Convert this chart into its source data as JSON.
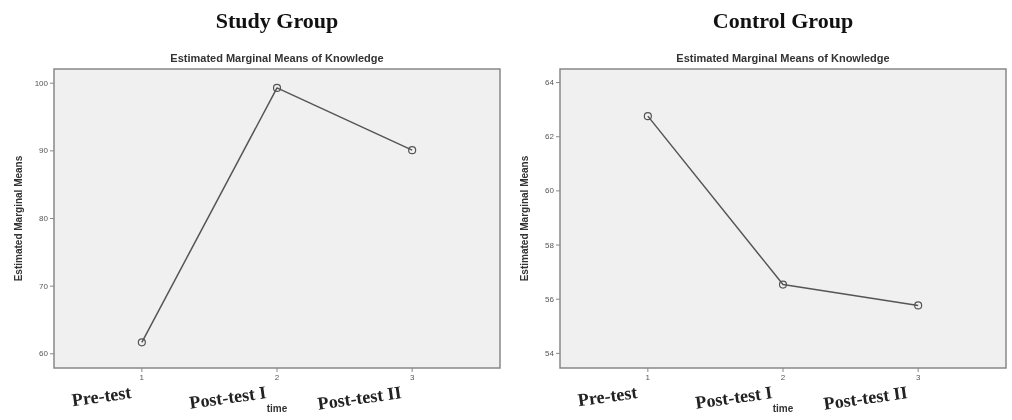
{
  "chart_data": [
    {
      "type": "line",
      "title": "Study Group",
      "subtitle": "Estimated Marginal Means of Knowledge",
      "xlabel": "time",
      "ylabel": "Estimated Marginal Means",
      "categories": [
        "1",
        "2",
        "3"
      ],
      "series": [
        {
          "color": "#555555",
          "values": [
            61.7,
            99.3,
            90.1
          ]
        }
      ],
      "ylim": [
        57.9,
        102.1
      ],
      "yticks": [
        60,
        70,
        80,
        90,
        100
      ],
      "grid": false,
      "marker": "circle",
      "line_style": "solid",
      "annotations": [
        "Pre-test",
        "Post-test I",
        "Post-test II"
      ]
    },
    {
      "type": "line",
      "title": "Control Group",
      "subtitle": "Estimated Marginal Means of Knowledge",
      "xlabel": "time",
      "ylabel": "Estimated Marginal Means",
      "categories": [
        "1",
        "2",
        "3"
      ],
      "series": [
        {
          "color": "#555555",
          "values": [
            62.76,
            56.54,
            55.77
          ]
        }
      ],
      "ylim": [
        53.46,
        64.5
      ],
      "yticks": [
        54,
        56,
        58,
        60,
        62,
        64
      ],
      "grid": false,
      "marker": "circle",
      "line_style": "solid",
      "annotations": [
        "Pre-test",
        "Post-test I",
        "Post-test II"
      ]
    }
  ]
}
